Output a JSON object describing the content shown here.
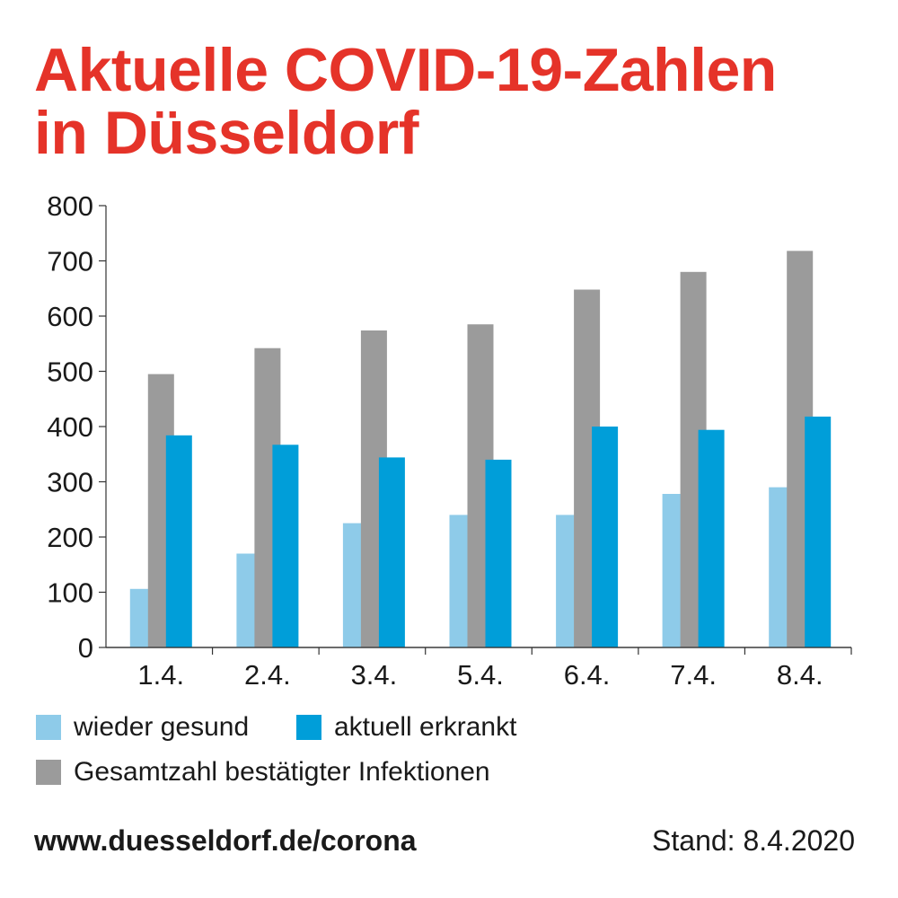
{
  "header": {
    "title_line1": "Aktuelle COVID-19-Zahlen",
    "title_line2": "in Düsseldorf"
  },
  "chart_data": {
    "type": "bar",
    "title": "Aktuelle COVID-19-Zahlen in Düsseldorf",
    "xlabel": "",
    "ylabel": "",
    "ylim": [
      0,
      800
    ],
    "yticks": [
      "0",
      "100",
      "200",
      "300",
      "400",
      "500",
      "600",
      "700",
      "800"
    ],
    "categories": [
      "1.4.",
      "2.4.",
      "3.4.",
      "5.4.",
      "6.4.",
      "7.4.",
      "8.4."
    ],
    "series": [
      {
        "name": "wieder gesund",
        "color": "#8ecbe9",
        "values": [
          106,
          170,
          225,
          240,
          240,
          278,
          290
        ]
      },
      {
        "name": "Gesamtzahl bestätigter Infektionen",
        "color": "#9b9b9b",
        "values": [
          495,
          542,
          574,
          585,
          648,
          680,
          718
        ]
      },
      {
        "name": "aktuell erkrankt",
        "color": "#009ed9",
        "values": [
          384,
          367,
          344,
          340,
          400,
          394,
          418
        ]
      }
    ],
    "legend": [
      "wieder gesund",
      "aktuell erkrankt",
      "Gesamtzahl bestätigter Infektionen"
    ],
    "grid": false
  },
  "footer": {
    "url": "www.duesseldorf.de/corona",
    "date": "Stand: 8.4.2020"
  }
}
